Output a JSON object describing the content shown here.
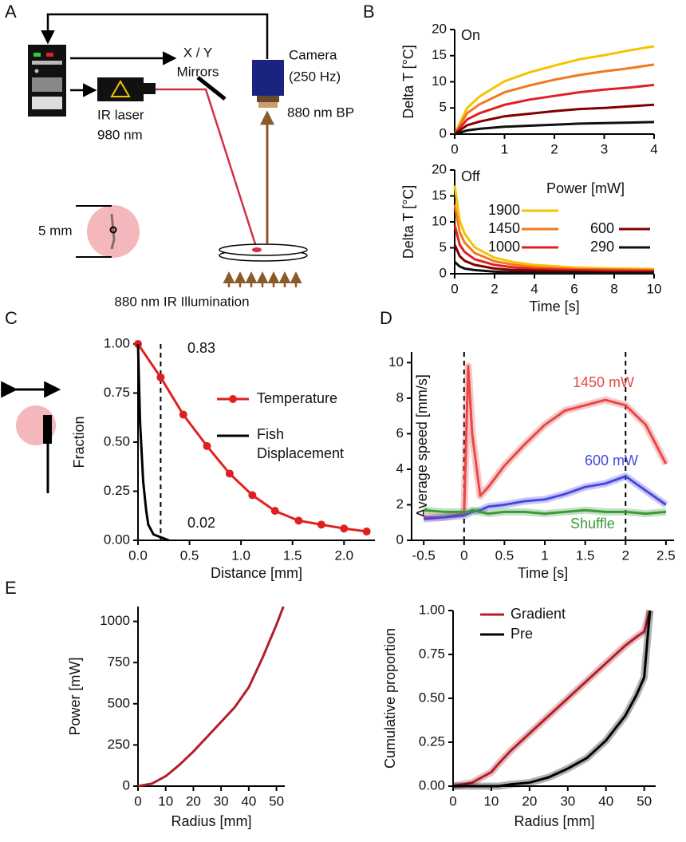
{
  "panels": [
    "A",
    "B",
    "C",
    "D",
    "E"
  ],
  "diagram": {
    "mirrors": [
      "X / Y",
      "Mirrors"
    ],
    "camera": [
      "Camera",
      "(250 Hz)"
    ],
    "filter": "880 nm BP",
    "laser": [
      "IR laser",
      "980 nm"
    ],
    "scale": "5 mm",
    "illumination": "880 nm IR Illumination"
  },
  "chart_data": [
    {
      "type": "line",
      "ylabel": "Delta T [°C]",
      "annotations": [
        "On"
      ],
      "xlim": [
        0,
        4
      ],
      "xticks": [
        0,
        1,
        2,
        3,
        4
      ],
      "ylim": [
        0,
        20
      ],
      "yticks": [
        0,
        5,
        10,
        15,
        20
      ],
      "series": [
        {
          "color": "#f5c400",
          "x": [
            0,
            0.25,
            0.5,
            1,
            1.5,
            2,
            2.5,
            3,
            3.5,
            4
          ],
          "values": [
            0,
            5.0,
            7.2,
            10.1,
            11.8,
            13.1,
            14.3,
            15.1,
            16.0,
            16.8
          ]
        },
        {
          "color": "#f07820",
          "x": [
            0,
            0.25,
            0.5,
            1,
            1.5,
            2,
            2.5,
            3,
            3.5,
            4
          ],
          "values": [
            0,
            4.0,
            5.7,
            8.0,
            9.3,
            10.4,
            11.3,
            12.0,
            12.6,
            13.3
          ]
        },
        {
          "color": "#e02020",
          "x": [
            0,
            0.25,
            0.5,
            1,
            1.5,
            2,
            2.5,
            3,
            3.5,
            4
          ],
          "values": [
            0,
            2.8,
            4.0,
            5.6,
            6.6,
            7.3,
            8.0,
            8.5,
            8.9,
            9.4
          ]
        },
        {
          "color": "#800000",
          "x": [
            0,
            0.25,
            0.5,
            1,
            1.5,
            2,
            2.5,
            3,
            3.5,
            4
          ],
          "values": [
            0,
            1.7,
            2.4,
            3.4,
            3.9,
            4.4,
            4.8,
            5.0,
            5.3,
            5.6
          ]
        },
        {
          "color": "#111111",
          "x": [
            0,
            0.25,
            0.5,
            1,
            1.5,
            2,
            2.5,
            3,
            3.5,
            4
          ],
          "values": [
            0,
            0.7,
            1.0,
            1.4,
            1.6,
            1.8,
            2.0,
            2.1,
            2.2,
            2.3
          ]
        }
      ]
    },
    {
      "type": "line",
      "ylabel": "Delta T [°C]",
      "xlabel": "Time [s]",
      "annotations": [
        "Off"
      ],
      "legend_title": "Power [mW]",
      "xlim": [
        0,
        10
      ],
      "xticks": [
        0,
        2,
        4,
        6,
        8,
        10
      ],
      "ylim": [
        0,
        20
      ],
      "yticks": [
        0,
        5,
        10,
        15,
        20
      ],
      "series": [
        {
          "name": "1900",
          "color": "#f5c400",
          "x": [
            0,
            0.25,
            0.5,
            1,
            2,
            3,
            4,
            6,
            8,
            10
          ],
          "values": [
            17,
            10.2,
            7.7,
            5.1,
            3.1,
            2.2,
            1.7,
            1.2,
            1.0,
            0.9
          ]
        },
        {
          "name": "1450",
          "color": "#f07820",
          "x": [
            0,
            0.25,
            0.5,
            1,
            2,
            3,
            4,
            6,
            8,
            10
          ],
          "values": [
            13.3,
            8.0,
            6.0,
            4.0,
            2.4,
            1.7,
            1.3,
            0.9,
            0.8,
            0.7
          ]
        },
        {
          "name": "1000",
          "color": "#e02020",
          "x": [
            0,
            0.25,
            0.5,
            1,
            2,
            3,
            4,
            6,
            8,
            10
          ],
          "values": [
            9.4,
            5.6,
            4.2,
            2.8,
            1.7,
            1.2,
            0.9,
            0.7,
            0.6,
            0.5
          ]
        },
        {
          "name": "600",
          "color": "#800000",
          "x": [
            0,
            0.25,
            0.5,
            1,
            2,
            3,
            4,
            6,
            8,
            10
          ],
          "values": [
            5.6,
            3.4,
            2.5,
            1.7,
            1.0,
            0.7,
            0.6,
            0.4,
            0.3,
            0.3
          ]
        },
        {
          "name": "290",
          "color": "#111111",
          "x": [
            0,
            0.25,
            0.5,
            1,
            2,
            3,
            4,
            6,
            8,
            10
          ],
          "values": [
            2.3,
            1.4,
            1.0,
            0.7,
            0.4,
            0.3,
            0.2,
            0.2,
            0.1,
            0.1
          ]
        }
      ]
    },
    {
      "type": "line",
      "ylabel": "Fraction",
      "xlabel": "Distance [mm]",
      "annotations": [
        "0.83",
        "0.02"
      ],
      "vlines": [
        0.22
      ],
      "xlim": [
        0,
        2.3
      ],
      "xticks": [
        {
          "value": 0,
          "label": "0.0"
        },
        0.5,
        {
          "value": 1,
          "label": "1.0"
        },
        1.5,
        {
          "value": 2,
          "label": "2.0"
        }
      ],
      "ylim": [
        0,
        1
      ],
      "yticks": [
        {
          "value": 0,
          "label": "0.00"
        },
        0.25,
        {
          "value": 0.5,
          "label": "0.50"
        },
        0.75,
        {
          "value": 1,
          "label": "1.00"
        }
      ],
      "series": [
        {
          "name": "Temperature",
          "color": "#e02020",
          "markers": true,
          "x": [
            0,
            0.22,
            0.44,
            0.67,
            0.89,
            1.11,
            1.33,
            1.56,
            1.78,
            2.0,
            2.22
          ],
          "values": [
            1.0,
            0.83,
            0.64,
            0.48,
            0.34,
            0.23,
            0.15,
            0.1,
            0.08,
            0.06,
            0.045
          ]
        },
        {
          "name": "Fish Displacement",
          "color": "#000000",
          "x": [
            0,
            0.02,
            0.05,
            0.08,
            0.1,
            0.15,
            0.2,
            0.3
          ],
          "values": [
            1.0,
            0.6,
            0.3,
            0.15,
            0.08,
            0.03,
            0.02,
            0.0
          ]
        }
      ]
    },
    {
      "type": "line",
      "ylabel": "Average speed [mm/s]",
      "xlabel": "Time [s]",
      "vlines": [
        0,
        2
      ],
      "xlim": [
        -0.65,
        2.6
      ],
      "xticks": [
        -0.5,
        0,
        0.5,
        1,
        1.5,
        2,
        2.5
      ],
      "ylim": [
        0,
        10.6
      ],
      "yticks": [
        0,
        2,
        4,
        6,
        8,
        10
      ],
      "series": [
        {
          "name": "1450 mW",
          "color": "#e84848",
          "band": true,
          "x": [
            -0.5,
            -0.25,
            0,
            0.05,
            0.1,
            0.2,
            0.3,
            0.5,
            0.75,
            1,
            1.25,
            1.5,
            1.75,
            2,
            2.25,
            2.5
          ],
          "values": [
            1.3,
            1.3,
            1.5,
            9.8,
            6,
            2.5,
            3.0,
            4.2,
            5.4,
            6.5,
            7.3,
            7.6,
            7.9,
            7.6,
            6.5,
            4.3
          ]
        },
        {
          "name": "600 mW",
          "color": "#4848e0",
          "band": true,
          "x": [
            -0.5,
            -0.25,
            0,
            0.05,
            0.1,
            0.2,
            0.3,
            0.5,
            0.75,
            1,
            1.25,
            1.5,
            1.75,
            2,
            2.25,
            2.5
          ],
          "values": [
            1.2,
            1.3,
            1.4,
            1.5,
            1.6,
            1.7,
            1.9,
            2.0,
            2.2,
            2.3,
            2.6,
            3.0,
            3.2,
            3.6,
            2.8,
            2.0
          ]
        },
        {
          "name": "Shuffle",
          "color": "#3a9a3a",
          "band": true,
          "x": [
            -0.5,
            -0.25,
            0,
            0.05,
            0.1,
            0.2,
            0.3,
            0.5,
            0.75,
            1,
            1.25,
            1.5,
            1.75,
            2,
            2.25,
            2.5
          ],
          "values": [
            1.7,
            1.6,
            1.6,
            1.6,
            1.7,
            1.6,
            1.5,
            1.6,
            1.6,
            1.5,
            1.6,
            1.7,
            1.6,
            1.6,
            1.5,
            1.6
          ]
        }
      ]
    },
    {
      "type": "line",
      "ylabel": "Power [mW]",
      "xlabel": "Radius [mm]",
      "xlim": [
        0,
        53
      ],
      "xticks": [
        0,
        10,
        20,
        30,
        40,
        50
      ],
      "ylim": [
        0,
        1090
      ],
      "yticks": [
        0,
        250,
        500,
        750,
        1000
      ],
      "series": [
        {
          "color": "#b0202a",
          "x": [
            0,
            5,
            10,
            15,
            20,
            25,
            30,
            35,
            40,
            45,
            50,
            52.5
          ],
          "values": [
            0,
            15,
            60,
            130,
            210,
            300,
            390,
            480,
            600,
            780,
            980,
            1090
          ]
        }
      ]
    },
    {
      "type": "line",
      "ylabel": "Cumulative proportion",
      "xlabel": "Radius [mm]",
      "xlim": [
        0,
        53
      ],
      "xticks": [
        0,
        10,
        20,
        30,
        40,
        50
      ],
      "ylim": [
        0,
        1
      ],
      "yticks": [
        {
          "value": 0,
          "label": "0.00"
        },
        0.25,
        {
          "value": 0.5,
          "label": "0.50"
        },
        0.75,
        {
          "value": 1,
          "label": "1.00"
        }
      ],
      "series": [
        {
          "name": "Gradient",
          "color": "#b0202a",
          "band": true,
          "x": [
            0,
            5,
            10,
            12,
            15,
            20,
            25,
            30,
            35,
            40,
            45,
            48,
            50,
            51.5
          ],
          "values": [
            0,
            0.02,
            0.08,
            0.13,
            0.2,
            0.3,
            0.4,
            0.5,
            0.6,
            0.7,
            0.8,
            0.85,
            0.88,
            1.0
          ]
        },
        {
          "name": "Pre",
          "color": "#000000",
          "band": true,
          "x": [
            0,
            5,
            10,
            12,
            15,
            20,
            25,
            30,
            35,
            40,
            45,
            48,
            50,
            51.5
          ],
          "values": [
            0,
            0,
            0,
            0,
            0.01,
            0.02,
            0.05,
            0.1,
            0.16,
            0.26,
            0.4,
            0.52,
            0.62,
            1.0
          ]
        }
      ]
    }
  ]
}
